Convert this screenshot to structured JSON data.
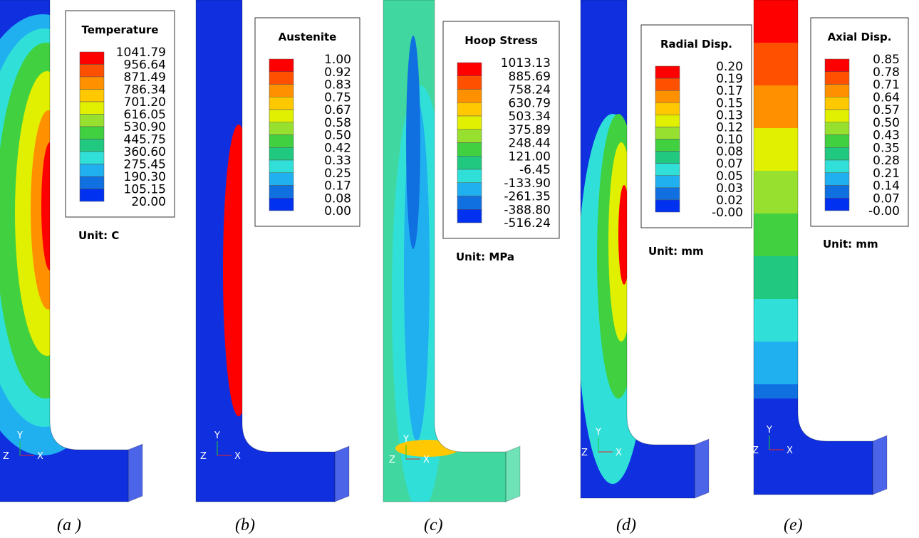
{
  "panels": [
    {
      "legend": {
        "title": "Temperature",
        "levels": [
          "1041.79",
          "956.64",
          "871.49",
          "786.34",
          "701.20",
          "616.05",
          "530.90",
          "445.75",
          "360.60",
          "275.45",
          "190.30",
          "105.15",
          "20.00"
        ]
      },
      "unit": "Unit: C",
      "triad": [
        "Y",
        "Z",
        "X"
      ],
      "caption": "(a )"
    },
    {
      "legend": {
        "title": "Austenite",
        "levels": [
          "1.00",
          "0.92",
          "0.83",
          "0.75",
          "0.67",
          "0.58",
          "0.50",
          "0.42",
          "0.33",
          "0.25",
          "0.17",
          "0.08",
          "0.00"
        ]
      },
      "triad": [
        "Y",
        "Z",
        "X"
      ],
      "caption": "(b)"
    },
    {
      "legend": {
        "title": "Hoop Stress",
        "levels": [
          "1013.13",
          "885.69",
          "758.24",
          "630.79",
          "503.34",
          "375.89",
          "248.44",
          "121.00",
          "-6.45",
          "-133.90",
          "-261.35",
          "-388.80",
          "-516.24"
        ]
      },
      "unit": "Unit: MPa",
      "triad": [
        "Y",
        "Z",
        "X"
      ],
      "caption": "(c)"
    },
    {
      "legend": {
        "title": "Radial Disp.",
        "levels": [
          "0.20",
          "0.19",
          "0.17",
          "0.15",
          "0.13",
          "0.12",
          "0.10",
          "0.08",
          "0.07",
          "0.05",
          "0.03",
          "0.02",
          "-0.00"
        ]
      },
      "unit": "Unit: mm",
      "triad": [
        "Y",
        "Z",
        "X"
      ],
      "caption": "(d)"
    },
    {
      "legend": {
        "title": "Axial Disp.",
        "levels": [
          "0.85",
          "0.78",
          "0.71",
          "0.64",
          "0.57",
          "0.50",
          "0.43",
          "0.35",
          "0.28",
          "0.21",
          "0.14",
          "0.07",
          "-0.00"
        ]
      },
      "unit": "Unit: mm",
      "triad": [
        "Y",
        "Z",
        "X"
      ],
      "caption": "(e)"
    }
  ]
}
